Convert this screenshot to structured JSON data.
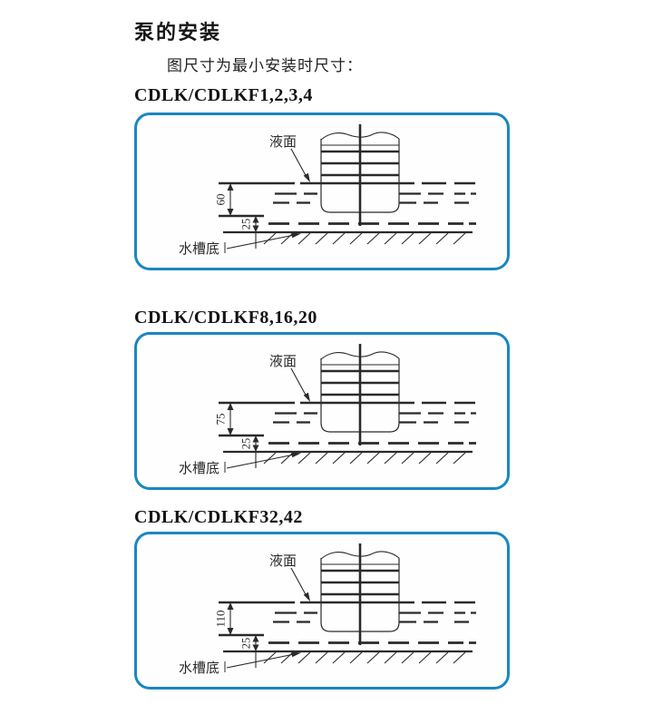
{
  "page": {
    "title": "泵的安装",
    "subtitle": "图尺寸为最小安装时尺寸："
  },
  "colors": {
    "panel_border": "#1987c0",
    "ink": "#2a2a2a"
  },
  "sections": [
    {
      "model": "CDLK/CDLKF1,2,3,4",
      "liquid_label": "液面",
      "bottom_label": "水槽底",
      "dim_main": "60",
      "dim_bottom": "25"
    },
    {
      "model": "CDLK/CDLKF8,16,20",
      "liquid_label": "液面",
      "bottom_label": "水槽底",
      "dim_main": "75",
      "dim_bottom": "25"
    },
    {
      "model": "CDLK/CDLKF32,42",
      "liquid_label": "液面",
      "bottom_label": "水槽底",
      "dim_main": "110",
      "dim_bottom": "25"
    }
  ]
}
